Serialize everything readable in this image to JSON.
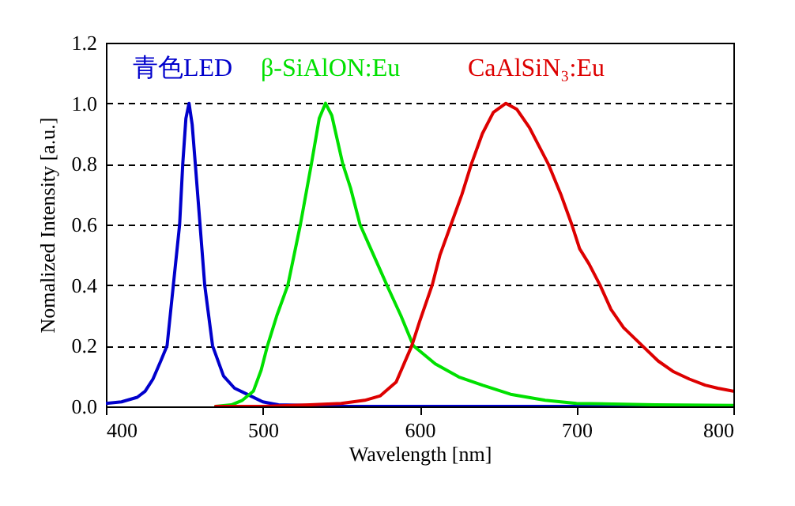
{
  "chart_data": {
    "type": "line",
    "xlabel": "Wavelength [nm]",
    "ylabel": "Nomalized Intensity [a.u.]",
    "xlim": [
      400,
      800
    ],
    "xticks": [
      400,
      500,
      600,
      700,
      800
    ],
    "ylim": [
      0,
      1.2
    ],
    "yticks": [
      {
        "value": 0,
        "label": "0.0"
      },
      {
        "value": 0.2,
        "label": "0.2"
      },
      {
        "value": 0.4,
        "label": "0.4"
      },
      {
        "value": 0.6,
        "label": "0.6"
      },
      {
        "value": 0.8,
        "label": "0.8"
      },
      {
        "value": 1,
        "label": "1.0"
      },
      {
        "value": 1.2,
        "label": "1.2"
      }
    ],
    "grid": "y",
    "legend": false,
    "marker": "none",
    "line_style": "solid",
    "series": [
      {
        "name": "青色LED",
        "color": "#0000cc",
        "x": [
          400,
          410,
          420,
          425,
          430,
          435,
          439,
          443,
          447,
          449,
          451,
          453,
          455,
          457,
          460,
          463,
          468,
          475,
          482,
          490,
          500,
          510,
          550,
          600,
          700,
          800
        ],
        "values": [
          0.01,
          0.015,
          0.03,
          0.05,
          0.09,
          0.15,
          0.2,
          0.4,
          0.6,
          0.8,
          0.95,
          1.0,
          0.93,
          0.8,
          0.6,
          0.4,
          0.2,
          0.1,
          0.06,
          0.04,
          0.015,
          0.005,
          0,
          0,
          0,
          0
        ]
      },
      {
        "name": "β-SiAlON:Eu",
        "color": "#00e000",
        "x": [
          470,
          480,
          487,
          494,
          499,
          503,
          509,
          516,
          524,
          531,
          536,
          540,
          544,
          551,
          556,
          562,
          568,
          574,
          580,
          588,
          596,
          610,
          625,
          640,
          658,
          680,
          700,
          750,
          800
        ],
        "values": [
          0,
          0.005,
          0.02,
          0.05,
          0.12,
          0.2,
          0.3,
          0.4,
          0.6,
          0.8,
          0.95,
          1.0,
          0.96,
          0.8,
          0.72,
          0.6,
          0.53,
          0.46,
          0.39,
          0.3,
          0.2,
          0.14,
          0.097,
          0.07,
          0.04,
          0.02,
          0.01,
          0.005,
          0.003
        ]
      },
      {
        "name": "CaAlSiN₃:Eu",
        "color": "#dd0000",
        "x": [
          470,
          500,
          530,
          550,
          565,
          575,
          585,
          595,
          600,
          608,
          613,
          620,
          627,
          633,
          640,
          647,
          655,
          662,
          670,
          676,
          682,
          690,
          697,
          702,
          708,
          715,
          722,
          730,
          742,
          752,
          762,
          772,
          782,
          790,
          800
        ],
        "values": [
          0,
          0,
          0.005,
          0.01,
          0.02,
          0.035,
          0.08,
          0.2,
          0.28,
          0.4,
          0.5,
          0.6,
          0.7,
          0.8,
          0.9,
          0.97,
          1.0,
          0.98,
          0.92,
          0.86,
          0.8,
          0.7,
          0.6,
          0.52,
          0.47,
          0.4,
          0.32,
          0.26,
          0.2,
          0.15,
          0.114,
          0.09,
          0.07,
          0.06,
          0.05
        ]
      }
    ]
  }
}
